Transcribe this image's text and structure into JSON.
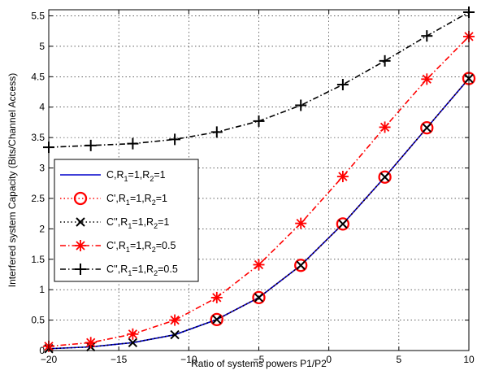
{
  "chart_data": {
    "type": "line",
    "title": "",
    "xlabel": "Ratio of systems powers P1/P2",
    "ylabel": "Interfered system Capacity (Bits/Channel Access)",
    "xlim": [
      -20,
      10
    ],
    "ylim": [
      0,
      5.6
    ],
    "xticks": [
      -20,
      -15,
      -10,
      -5,
      0,
      5,
      10
    ],
    "xtick_labels": [
      "−20",
      "−15",
      "−10",
      "−5",
      "0",
      "5",
      "10"
    ],
    "yticks": [
      0,
      0.5,
      1,
      1.5,
      2,
      2.5,
      3,
      3.5,
      4,
      4.5,
      5,
      5.5
    ],
    "ytick_labels": [
      "0",
      "0.5",
      "1",
      "1.5",
      "2",
      "2.5",
      "3",
      "3.5",
      "4",
      "4.5",
      "5",
      "5.5"
    ],
    "grid": true,
    "legend_placement": "center-left",
    "series": [
      {
        "id": "s1",
        "color": "#0000cc",
        "line": "solid",
        "marker": "none",
        "legend_parts": [
          [
            "C,R",
            ""
          ],
          [
            "1",
            "sub"
          ],
          [
            "=1,R",
            ""
          ],
          [
            "2",
            "sub"
          ],
          [
            "=1",
            ""
          ]
        ],
        "x": [
          -20,
          -19,
          -17,
          -14,
          -11,
          -8,
          -5,
          -2,
          1,
          4,
          7,
          10
        ],
        "y": [
          0.03,
          0.04,
          0.06,
          0.13,
          0.26,
          0.51,
          0.87,
          1.4,
          2.08,
          2.85,
          3.66,
          4.47
        ]
      },
      {
        "id": "s2",
        "color": "#ff0000",
        "line": "dotted",
        "marker": "circle",
        "legend_parts": [
          [
            "C',R",
            ""
          ],
          [
            "1",
            "sub"
          ],
          [
            "=1,R",
            ""
          ],
          [
            "2",
            "sub"
          ],
          [
            "=1",
            ""
          ]
        ],
        "x": [
          -8,
          -5,
          -2,
          1,
          4,
          7,
          10
        ],
        "y": [
          0.51,
          0.87,
          1.4,
          2.08,
          2.85,
          3.66,
          4.47
        ]
      },
      {
        "id": "s3",
        "color": "#000000",
        "line": "dotted",
        "marker": "x",
        "legend_parts": [
          [
            "C'',R",
            ""
          ],
          [
            "1",
            "sub"
          ],
          [
            "=1,R",
            ""
          ],
          [
            "2",
            "sub"
          ],
          [
            "=1",
            ""
          ]
        ],
        "x": [
          -20,
          -17,
          -14,
          -11,
          -8,
          -5,
          -2,
          1,
          4,
          7,
          10
        ],
        "y": [
          0.03,
          0.06,
          0.13,
          0.26,
          0.51,
          0.87,
          1.4,
          2.08,
          2.85,
          3.66,
          4.47
        ]
      },
      {
        "id": "s4",
        "color": "#ff0000",
        "line": "dashdot",
        "marker": "asterisk",
        "legend_parts": [
          [
            "C',R",
            ""
          ],
          [
            "1",
            "sub"
          ],
          [
            "=1,R",
            ""
          ],
          [
            "2",
            "sub"
          ],
          [
            "=0.5",
            ""
          ]
        ],
        "x": [
          -20,
          -17,
          -14,
          -11,
          -8,
          -5,
          -2,
          1,
          4,
          7,
          10
        ],
        "y": [
          0.07,
          0.13,
          0.27,
          0.5,
          0.87,
          1.41,
          2.09,
          2.86,
          3.67,
          4.46,
          5.16
        ]
      },
      {
        "id": "s5",
        "color": "#000000",
        "line": "dashdot",
        "marker": "plus",
        "legend_parts": [
          [
            "C'',R",
            ""
          ],
          [
            "1",
            "sub"
          ],
          [
            "=1,R",
            ""
          ],
          [
            "2",
            "sub"
          ],
          [
            "=0.5",
            ""
          ]
        ],
        "x": [
          -20,
          -17,
          -14,
          -11,
          -8,
          -5,
          -2,
          1,
          4,
          7,
          10
        ],
        "y": [
          3.34,
          3.37,
          3.4,
          3.47,
          3.59,
          3.77,
          4.03,
          4.37,
          4.76,
          5.17,
          5.56
        ]
      }
    ]
  }
}
